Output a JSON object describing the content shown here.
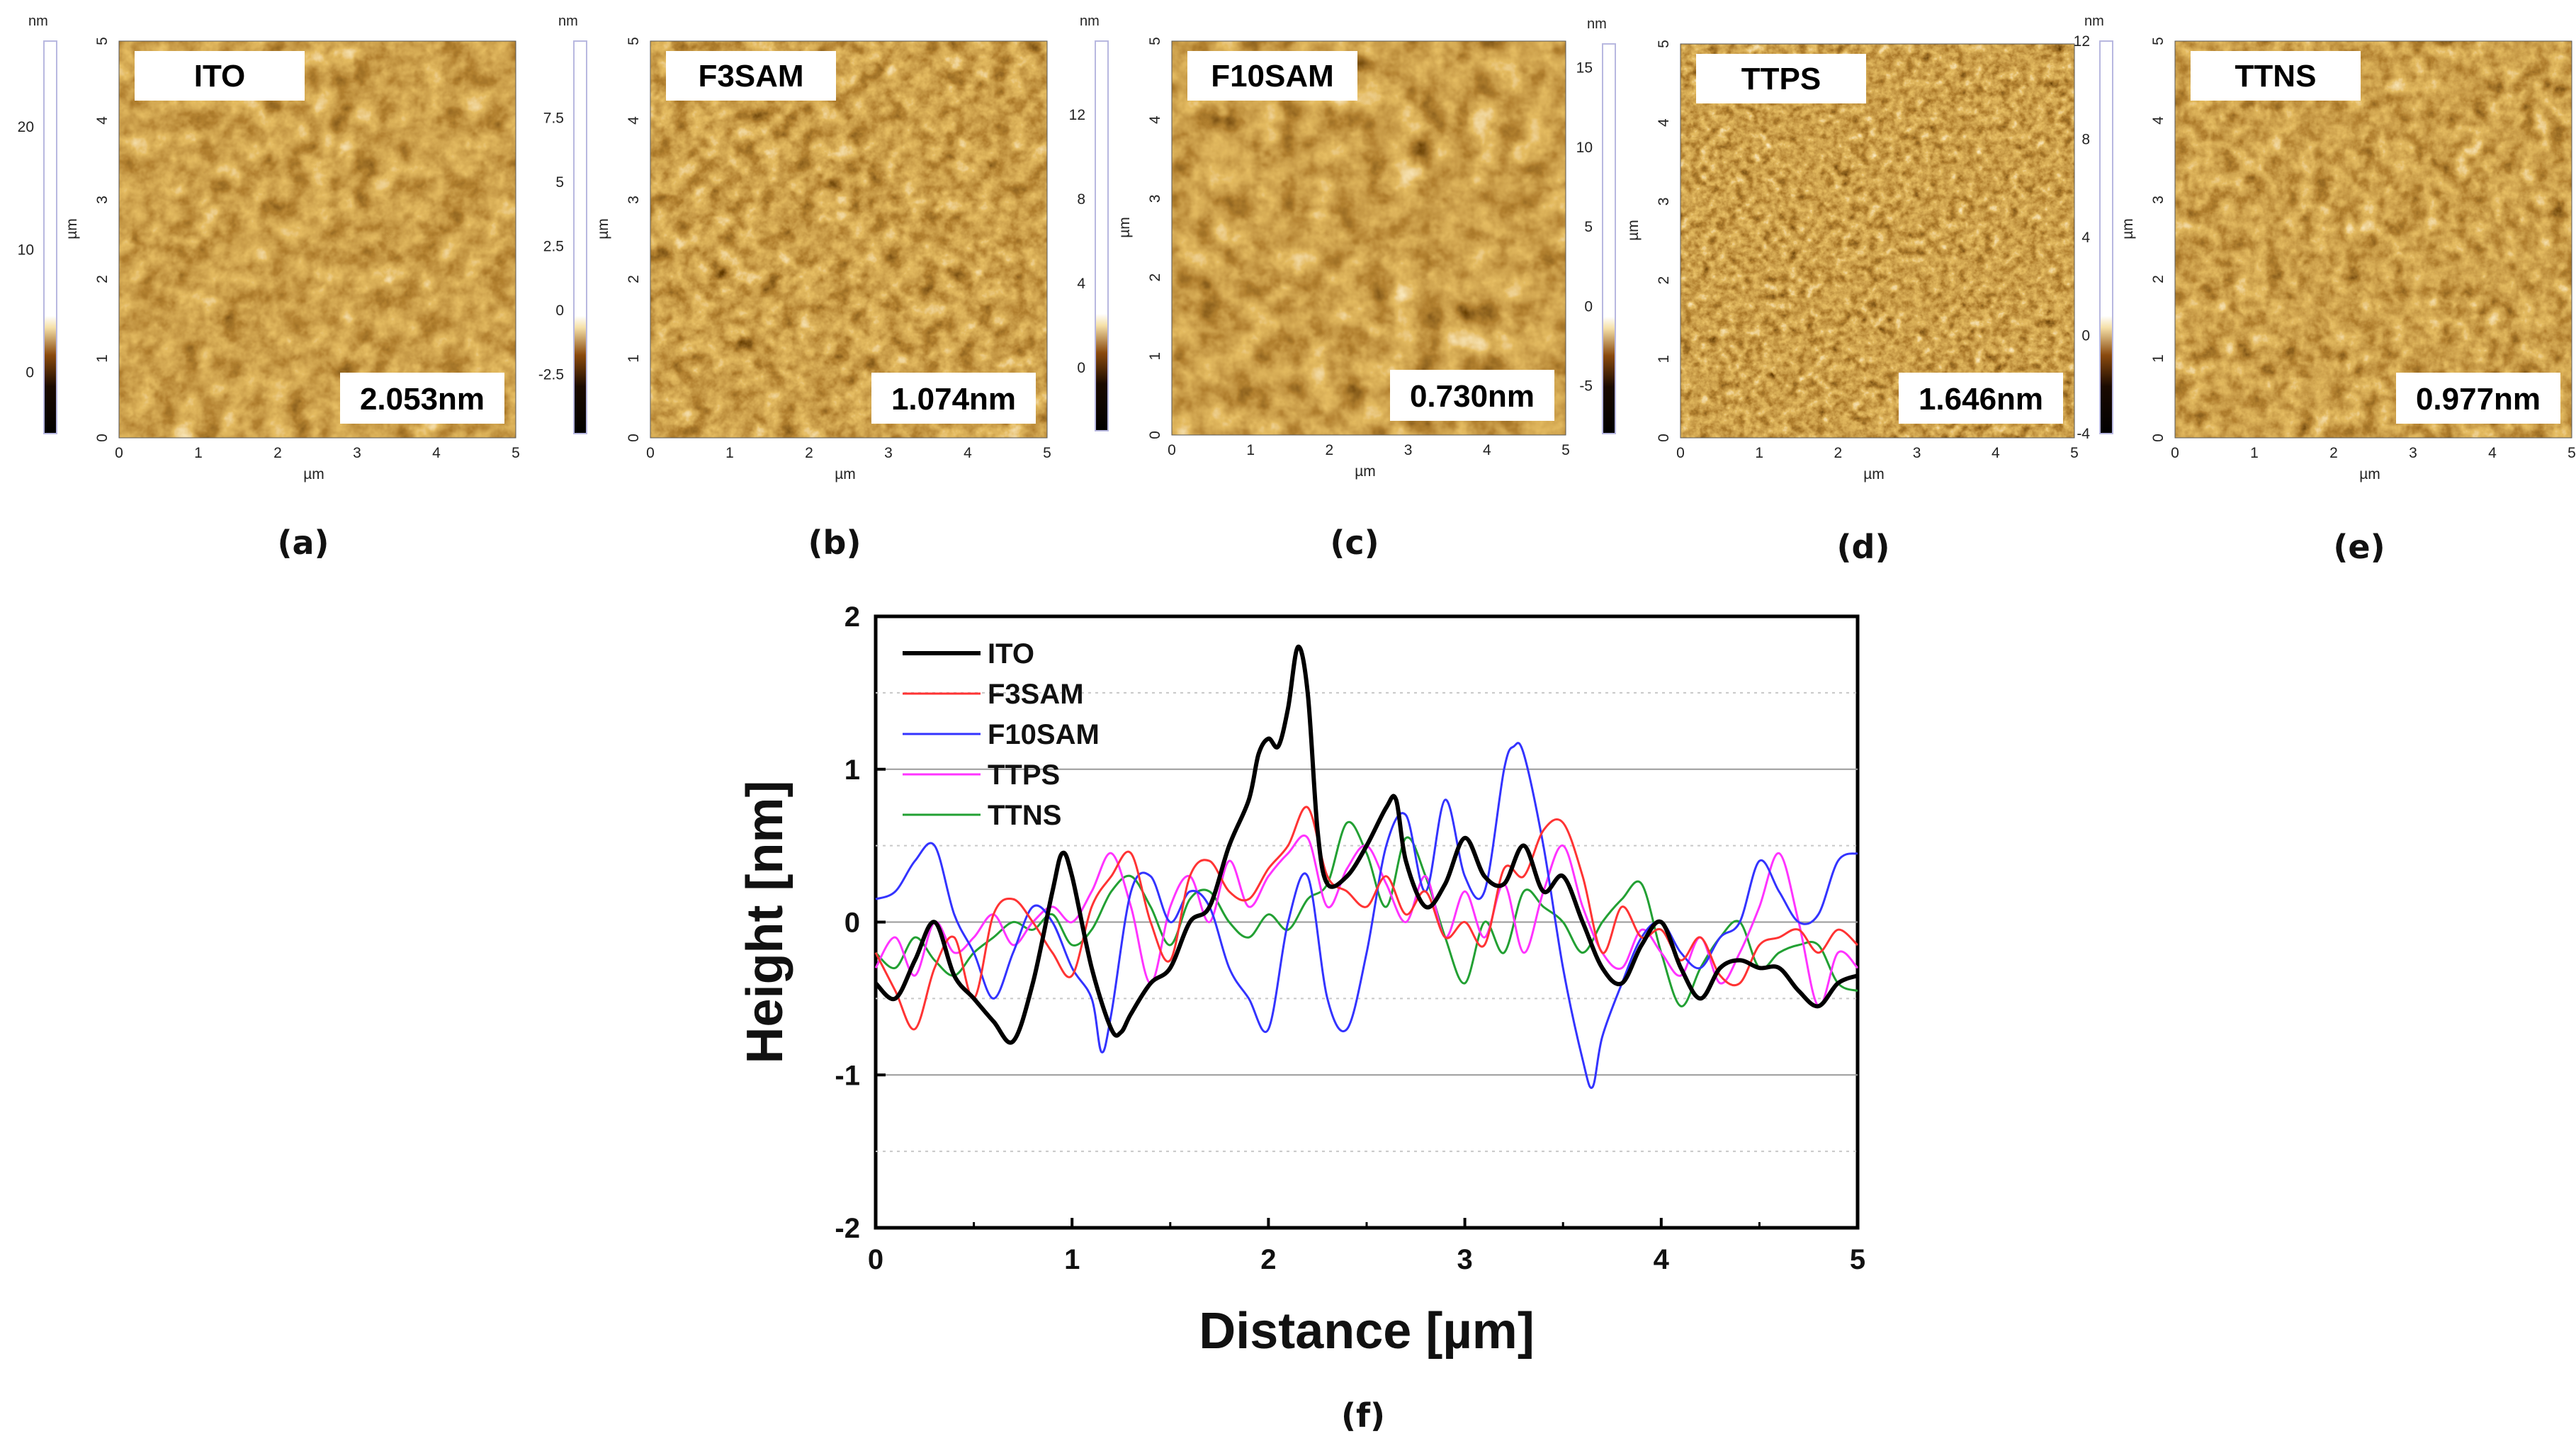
{
  "colors": {
    "ITO": "#000000",
    "F3SAM": "#ff3333",
    "F10SAM": "#3333ff",
    "TTPS": "#ff33ff",
    "TTNS": "#22a033",
    "afm_dark": "#1a0a00",
    "afm_mid": "#8a4a0e",
    "afm_light": "#f5e0a8"
  },
  "afm_panels": [
    {
      "id": "a",
      "label": "(a)",
      "name": "ITO",
      "roughness": "2.053nm",
      "x_axis_unit": "µm",
      "y_axis_unit": "µm",
      "x_ticks": [
        "0",
        "1",
        "2",
        "3",
        "4",
        "5"
      ],
      "y_ticks": [
        "0",
        "1",
        "2",
        "3",
        "4",
        "5"
      ],
      "scale_unit": "nm",
      "scale_ticks": [
        "20",
        "10",
        "0"
      ],
      "scale_range": [
        -5,
        27
      ],
      "scale_tick_values": [
        20,
        10,
        0
      ],
      "pattern_seed": 1
    },
    {
      "id": "b",
      "label": "(b)",
      "name": "F3SAM",
      "roughness": "1.074nm",
      "x_axis_unit": "µm",
      "y_axis_unit": "µm",
      "x_ticks": [
        "0",
        "1",
        "2",
        "3",
        "4",
        "5"
      ],
      "y_ticks": [
        "0",
        "1",
        "2",
        "3",
        "4",
        "5"
      ],
      "scale_unit": "nm",
      "scale_ticks": [
        "7.5",
        "5",
        "2.5",
        "0",
        "-2.5"
      ],
      "scale_range": [
        -4.8,
        10.5
      ],
      "scale_tick_values": [
        7.5,
        5,
        2.5,
        0,
        -2.5
      ],
      "pattern_seed": 2
    },
    {
      "id": "c",
      "label": "(c)",
      "name": "F10SAM",
      "roughness": "0.730nm",
      "x_axis_unit": "µm",
      "y_axis_unit": "µm",
      "x_ticks": [
        "0",
        "1",
        "2",
        "3",
        "4",
        "5"
      ],
      "y_ticks": [
        "0",
        "1",
        "2",
        "3",
        "4",
        "5"
      ],
      "scale_unit": "nm",
      "scale_ticks": [
        "12",
        "8",
        "4",
        "0"
      ],
      "scale_range": [
        -3,
        15.5
      ],
      "scale_tick_values": [
        12,
        8,
        4,
        0
      ],
      "pattern_seed": 3
    },
    {
      "id": "d",
      "label": "(d)",
      "name": "TTPS",
      "roughness": "1.646nm",
      "x_axis_unit": "µm",
      "y_axis_unit": "µm",
      "x_ticks": [
        "0",
        "1",
        "2",
        "3",
        "4",
        "5"
      ],
      "y_ticks": [
        "0",
        "1",
        "2",
        "3",
        "4",
        "5"
      ],
      "scale_unit": "nm",
      "scale_ticks": [
        "15",
        "10",
        "5",
        "0",
        "-5"
      ],
      "scale_range": [
        -8,
        16.5
      ],
      "scale_tick_values": [
        15,
        10,
        5,
        0,
        -5
      ],
      "pattern_seed": 4
    },
    {
      "id": "e",
      "label": "(e)",
      "name": "TTNS",
      "roughness": "0.977nm",
      "x_axis_unit": "µm",
      "y_axis_unit": "µm",
      "x_ticks": [
        "0",
        "1",
        "2",
        "3",
        "4",
        "5"
      ],
      "y_ticks": [
        "0",
        "1",
        "2",
        "3",
        "4",
        "5"
      ],
      "scale_unit": "nm",
      "scale_ticks": [
        "12",
        "8",
        "4",
        "0",
        "-4"
      ],
      "scale_range": [
        -4,
        12
      ],
      "scale_tick_values": [
        12,
        8,
        4,
        0,
        -4
      ],
      "pattern_seed": 5
    }
  ],
  "chart_data": {
    "type": "line",
    "panel_label": "(f)",
    "title": "",
    "xlabel": "Distance [µm]",
    "ylabel": "Height [nm]",
    "xlim": [
      0,
      5
    ],
    "ylim": [
      -2,
      2
    ],
    "x_ticks": [
      0,
      1,
      2,
      3,
      4,
      5
    ],
    "y_ticks": [
      -2,
      -1,
      0,
      1,
      2
    ],
    "grid": true,
    "legend_position": "top-left",
    "series": [
      {
        "name": "ITO",
        "x": [
          0,
          0.1,
          0.2,
          0.3,
          0.4,
          0.5,
          0.6,
          0.7,
          0.8,
          0.9,
          0.95,
          1.0,
          1.1,
          1.2,
          1.25,
          1.3,
          1.4,
          1.5,
          1.6,
          1.7,
          1.8,
          1.9,
          1.95,
          2.0,
          2.05,
          2.1,
          2.15,
          2.2,
          2.25,
          2.3,
          2.4,
          2.5,
          2.6,
          2.65,
          2.7,
          2.8,
          2.9,
          3.0,
          3.1,
          3.2,
          3.3,
          3.4,
          3.5,
          3.6,
          3.7,
          3.8,
          3.9,
          4.0,
          4.1,
          4.2,
          4.3,
          4.4,
          4.5,
          4.6,
          4.7,
          4.8,
          4.9,
          5.0
        ],
        "values": [
          -0.4,
          -0.5,
          -0.25,
          0.0,
          -0.35,
          -0.5,
          -0.65,
          -0.78,
          -0.4,
          0.2,
          0.45,
          0.3,
          -0.3,
          -0.7,
          -0.72,
          -0.6,
          -0.4,
          -0.3,
          0.0,
          0.1,
          0.5,
          0.8,
          1.1,
          1.2,
          1.15,
          1.4,
          1.8,
          1.5,
          0.6,
          0.25,
          0.3,
          0.5,
          0.75,
          0.8,
          0.4,
          0.1,
          0.25,
          0.55,
          0.3,
          0.25,
          0.5,
          0.2,
          0.3,
          0.0,
          -0.3,
          -0.4,
          -0.15,
          0.0,
          -0.3,
          -0.5,
          -0.3,
          -0.25,
          -0.3,
          -0.3,
          -0.45,
          -0.55,
          -0.4,
          -0.35
        ]
      },
      {
        "name": "F3SAM",
        "x": [
          0,
          0.1,
          0.2,
          0.3,
          0.4,
          0.5,
          0.6,
          0.7,
          0.8,
          0.9,
          1.0,
          1.1,
          1.2,
          1.3,
          1.4,
          1.5,
          1.6,
          1.7,
          1.8,
          1.9,
          2.0,
          2.1,
          2.2,
          2.3,
          2.4,
          2.5,
          2.6,
          2.7,
          2.8,
          2.9,
          3.0,
          3.1,
          3.2,
          3.3,
          3.4,
          3.5,
          3.6,
          3.7,
          3.8,
          3.9,
          4.0,
          4.1,
          4.2,
          4.3,
          4.4,
          4.5,
          4.6,
          4.7,
          4.8,
          4.9,
          5.0
        ],
        "values": [
          -0.2,
          -0.45,
          -0.7,
          -0.3,
          -0.1,
          -0.5,
          0.05,
          0.15,
          0.0,
          -0.2,
          -0.35,
          0.1,
          0.3,
          0.45,
          0.0,
          -0.25,
          0.3,
          0.4,
          0.2,
          0.15,
          0.35,
          0.5,
          0.75,
          0.3,
          0.2,
          0.1,
          0.3,
          0.05,
          0.2,
          -0.1,
          0.0,
          -0.15,
          0.35,
          0.3,
          0.6,
          0.65,
          0.3,
          -0.2,
          0.1,
          -0.1,
          -0.05,
          -0.25,
          -0.1,
          -0.35,
          -0.4,
          -0.15,
          -0.1,
          -0.05,
          -0.2,
          -0.05,
          -0.15
        ]
      },
      {
        "name": "F10SAM",
        "x": [
          0,
          0.1,
          0.2,
          0.3,
          0.4,
          0.5,
          0.6,
          0.7,
          0.8,
          0.9,
          1.0,
          1.1,
          1.15,
          1.2,
          1.3,
          1.4,
          1.5,
          1.6,
          1.7,
          1.8,
          1.9,
          2.0,
          2.1,
          2.2,
          2.3,
          2.4,
          2.5,
          2.6,
          2.7,
          2.8,
          2.9,
          3.0,
          3.1,
          3.2,
          3.25,
          3.3,
          3.4,
          3.5,
          3.6,
          3.65,
          3.7,
          3.8,
          3.9,
          4.0,
          4.1,
          4.2,
          4.3,
          4.4,
          4.5,
          4.6,
          4.7,
          4.8,
          4.9,
          5.0
        ],
        "values": [
          0.15,
          0.2,
          0.4,
          0.5,
          0.05,
          -0.2,
          -0.5,
          -0.2,
          0.1,
          0.0,
          -0.3,
          -0.5,
          -0.85,
          -0.6,
          0.2,
          0.3,
          0.0,
          0.2,
          0.1,
          -0.3,
          -0.5,
          -0.7,
          0.0,
          0.3,
          -0.5,
          -0.7,
          -0.2,
          0.5,
          0.7,
          0.2,
          0.8,
          0.3,
          0.2,
          1.0,
          1.15,
          1.1,
          0.5,
          -0.3,
          -0.9,
          -1.08,
          -0.75,
          -0.4,
          -0.1,
          0.0,
          -0.2,
          -0.3,
          -0.1,
          0.0,
          0.4,
          0.2,
          0.0,
          0.05,
          0.4,
          0.45
        ]
      },
      {
        "name": "TTPS",
        "x": [
          0,
          0.1,
          0.2,
          0.3,
          0.4,
          0.5,
          0.6,
          0.7,
          0.8,
          0.9,
          1.0,
          1.1,
          1.2,
          1.3,
          1.4,
          1.5,
          1.6,
          1.7,
          1.8,
          1.9,
          2.0,
          2.1,
          2.2,
          2.3,
          2.4,
          2.5,
          2.6,
          2.7,
          2.8,
          2.9,
          3.0,
          3.1,
          3.2,
          3.3,
          3.4,
          3.5,
          3.6,
          3.7,
          3.8,
          3.9,
          4.0,
          4.1,
          4.2,
          4.3,
          4.4,
          4.5,
          4.6,
          4.7,
          4.8,
          4.9,
          5.0
        ],
        "values": [
          -0.3,
          -0.1,
          -0.35,
          0.0,
          -0.2,
          -0.1,
          0.05,
          -0.15,
          0.0,
          0.1,
          0.0,
          0.2,
          0.45,
          0.1,
          -0.4,
          0.1,
          0.3,
          0.0,
          0.4,
          0.1,
          0.3,
          0.45,
          0.55,
          0.1,
          0.35,
          0.5,
          0.25,
          0.0,
          0.3,
          -0.1,
          0.2,
          -0.1,
          0.25,
          -0.2,
          0.2,
          0.5,
          0.1,
          -0.2,
          -0.3,
          -0.05,
          -0.2,
          -0.35,
          -0.1,
          -0.4,
          -0.2,
          0.1,
          0.45,
          0.0,
          -0.55,
          -0.2,
          -0.3
        ]
      },
      {
        "name": "TTNS",
        "x": [
          0,
          0.1,
          0.2,
          0.3,
          0.4,
          0.5,
          0.6,
          0.7,
          0.8,
          0.9,
          1.0,
          1.1,
          1.2,
          1.3,
          1.4,
          1.5,
          1.6,
          1.7,
          1.8,
          1.9,
          2.0,
          2.1,
          2.2,
          2.3,
          2.4,
          2.5,
          2.6,
          2.7,
          2.8,
          2.9,
          3.0,
          3.1,
          3.2,
          3.3,
          3.4,
          3.5,
          3.6,
          3.7,
          3.8,
          3.9,
          4.0,
          4.1,
          4.2,
          4.3,
          4.4,
          4.5,
          4.6,
          4.7,
          4.8,
          4.9,
          5.0
        ],
        "values": [
          -0.2,
          -0.3,
          -0.1,
          -0.25,
          -0.35,
          -0.2,
          -0.1,
          0.0,
          -0.05,
          0.05,
          -0.15,
          -0.05,
          0.2,
          0.3,
          0.1,
          -0.15,
          0.15,
          0.2,
          0.0,
          -0.1,
          0.05,
          -0.05,
          0.15,
          0.25,
          0.65,
          0.45,
          0.1,
          0.55,
          0.3,
          -0.1,
          -0.4,
          0.0,
          -0.2,
          0.2,
          0.1,
          0.0,
          -0.2,
          0.0,
          0.15,
          0.25,
          -0.2,
          -0.55,
          -0.3,
          -0.1,
          0.0,
          -0.3,
          -0.2,
          -0.15,
          -0.15,
          -0.4,
          -0.45
        ]
      }
    ]
  }
}
